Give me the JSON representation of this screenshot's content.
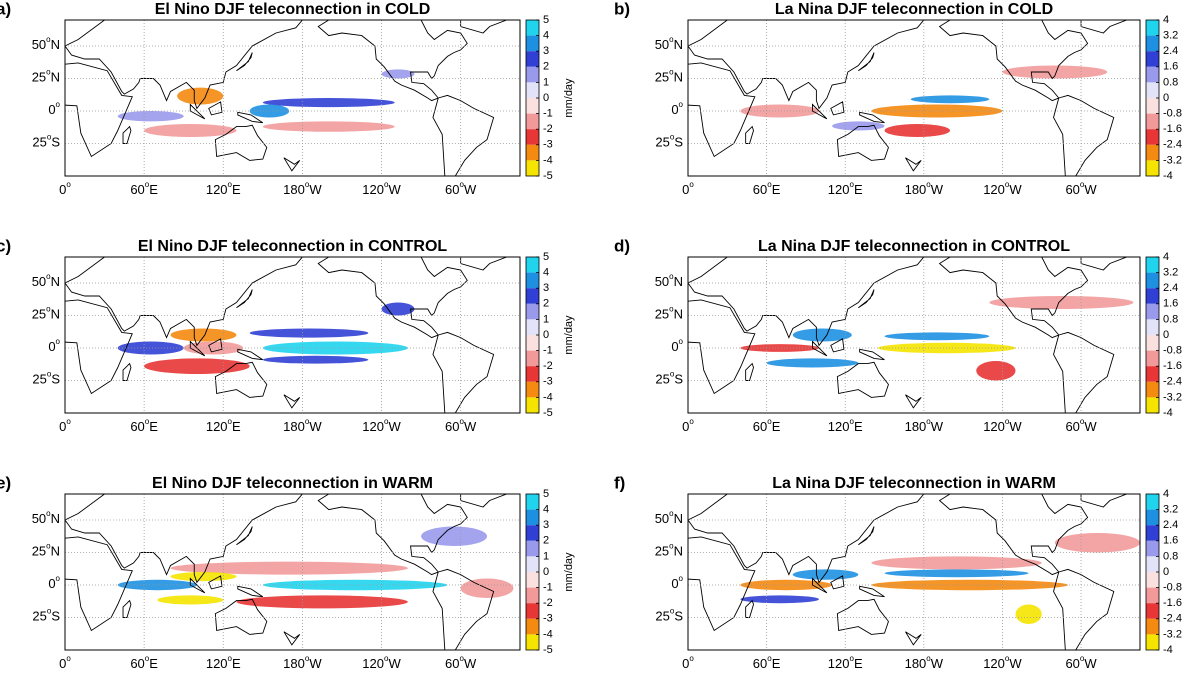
{
  "map": {
    "xlim": [
      0,
      345
    ],
    "ylim": [
      -50,
      70
    ],
    "xticks": [
      {
        "value": 0,
        "num": "0",
        "deg": "o"
      },
      {
        "value": 60,
        "num": "60",
        "deg": "o",
        "dir": "E"
      },
      {
        "value": 120,
        "num": "120",
        "deg": "o",
        "dir": "E"
      },
      {
        "value": 180,
        "num": "180",
        "deg": "o",
        "dir": "W"
      },
      {
        "value": 240,
        "num": "120",
        "deg": "o",
        "dir": "W"
      },
      {
        "value": 300,
        "num": "60",
        "deg": "o",
        "dir": "W"
      }
    ],
    "yticks": [
      {
        "value": 50,
        "num": "50",
        "deg": "o",
        "dir": "N"
      },
      {
        "value": 25,
        "num": "25",
        "deg": "o",
        "dir": "N"
      },
      {
        "value": 0,
        "num": "0",
        "deg": "o"
      },
      {
        "value": -25,
        "num": "25",
        "deg": "o",
        "dir": "S"
      }
    ],
    "grid": true,
    "colors": [
      "#f5e400",
      "#f48a10",
      "#e83535",
      "#f29a9a",
      "#fbe0e0",
      "#e2e2f8",
      "#9a9aec",
      "#3040d4",
      "#1e90e2",
      "#20d4ee"
    ]
  },
  "panels": [
    {
      "label": "a)",
      "title": "El Nino DJF teleconnection in COLD",
      "colorbar": {
        "lim": [
          -5,
          5
        ],
        "ticks": [
          5,
          4,
          3,
          2,
          1,
          0,
          -1,
          -2,
          -3,
          -4,
          -5
        ],
        "unit": "mm/day"
      },
      "anomalies": [
        {
          "lon": [
            60,
            130
          ],
          "lat": [
            -20,
            -10
          ],
          "value": -1.5
        },
        {
          "lon": [
            150,
            250
          ],
          "lat": [
            -16,
            -8
          ],
          "value": -1.5
        },
        {
          "lon": [
            40,
            90
          ],
          "lat": [
            -8,
            0
          ],
          "value": 1.5
        },
        {
          "lon": [
            150,
            250
          ],
          "lat": [
            3,
            10
          ],
          "value": 2.5
        },
        {
          "lon": [
            140,
            170
          ],
          "lat": [
            -5,
            5
          ],
          "value": 3.5
        },
        {
          "lon": [
            85,
            120
          ],
          "lat": [
            5,
            18
          ],
          "value": -3.5
        },
        {
          "lon": [
            240,
            265
          ],
          "lat": [
            25,
            32
          ],
          "value": 1.5
        }
      ]
    },
    {
      "label": "b)",
      "title": "La Nina DJF teleconnection in COLD",
      "colorbar": {
        "lim": [
          -4,
          4
        ],
        "ticks": [
          4,
          3.2,
          2.4,
          1.6,
          0.8,
          0,
          -0.8,
          -1.6,
          -2.4,
          -3.2,
          -4
        ]
      },
      "anomalies": [
        {
          "lon": [
            240,
            320
          ],
          "lat": [
            25,
            35
          ],
          "value": -1.2
        },
        {
          "lon": [
            40,
            100
          ],
          "lat": [
            -5,
            5
          ],
          "value": -1.2
        },
        {
          "lon": [
            150,
            200
          ],
          "lat": [
            -20,
            -10
          ],
          "value": -2
        },
        {
          "lon": [
            110,
            150
          ],
          "lat": [
            -15,
            -8
          ],
          "value": 1.2
        },
        {
          "lon": [
            140,
            240
          ],
          "lat": [
            -5,
            5
          ],
          "value": -2.8
        },
        {
          "lon": [
            170,
            230
          ],
          "lat": [
            6,
            12
          ],
          "value": 2.8
        }
      ]
    },
    {
      "label": "c)",
      "title": "El Nino DJF teleconnection in CONTROL",
      "colorbar": {
        "lim": [
          -5,
          5
        ],
        "ticks": [
          5,
          4,
          3,
          2,
          1,
          0,
          -1,
          -2,
          -3,
          -4,
          -5
        ],
        "unit": "mm/day"
      },
      "anomalies": [
        {
          "lon": [
            60,
            140
          ],
          "lat": [
            -20,
            -8
          ],
          "value": -2.5
        },
        {
          "lon": [
            140,
            230
          ],
          "lat": [
            8,
            15
          ],
          "value": 2.5
        },
        {
          "lon": [
            150,
            230
          ],
          "lat": [
            -12,
            -6
          ],
          "value": 2.5
        },
        {
          "lon": [
            40,
            90
          ],
          "lat": [
            -5,
            5
          ],
          "value": 2.5
        },
        {
          "lon": [
            90,
            135
          ],
          "lat": [
            -5,
            5
          ],
          "value": -1.5
        },
        {
          "lon": [
            150,
            260
          ],
          "lat": [
            -5,
            5
          ],
          "value": 4.5
        },
        {
          "lon": [
            80,
            130
          ],
          "lat": [
            5,
            15
          ],
          "value": -3.5
        },
        {
          "lon": [
            240,
            265
          ],
          "lat": [
            25,
            35
          ],
          "value": 2.5
        }
      ]
    },
    {
      "label": "d)",
      "title": "La Nina DJF teleconnection in CONTROL",
      "colorbar": {
        "lim": [
          -4,
          4
        ],
        "ticks": [
          4,
          3.2,
          2.4,
          1.6,
          0.8,
          0,
          -0.8,
          -1.6,
          -2.4,
          -3.2,
          -4
        ]
      },
      "anomalies": [
        {
          "lon": [
            230,
            340
          ],
          "lat": [
            30,
            40
          ],
          "value": -1.2
        },
        {
          "lon": [
            40,
            100
          ],
          "lat": [
            -3,
            3
          ],
          "value": -2
        },
        {
          "lon": [
            220,
            250
          ],
          "lat": [
            -25,
            -10
          ],
          "value": -2
        },
        {
          "lon": [
            60,
            130
          ],
          "lat": [
            -15,
            -8
          ],
          "value": 2.8
        },
        {
          "lon": [
            80,
            125
          ],
          "lat": [
            5,
            15
          ],
          "value": 2.8
        },
        {
          "lon": [
            150,
            230
          ],
          "lat": [
            6,
            12
          ],
          "value": 2.8
        },
        {
          "lon": [
            145,
            250
          ],
          "lat": [
            -4,
            4
          ],
          "value": -3.6
        }
      ]
    },
    {
      "label": "e)",
      "title": "El Nino DJF teleconnection in WARM",
      "colorbar": {
        "lim": [
          -5,
          5
        ],
        "ticks": [
          5,
          4,
          3,
          2,
          1,
          0,
          -1,
          -2,
          -3,
          -4,
          -5
        ],
        "unit": "mm/day"
      },
      "anomalies": [
        {
          "lon": [
            80,
            260
          ],
          "lat": [
            8,
            18
          ],
          "value": -1.5
        },
        {
          "lon": [
            130,
            260
          ],
          "lat": [
            -18,
            -8
          ],
          "value": -2.5
        },
        {
          "lon": [
            270,
            320
          ],
          "lat": [
            30,
            45
          ],
          "value": 1.5
        },
        {
          "lon": [
            300,
            340
          ],
          "lat": [
            -10,
            5
          ],
          "value": -1.5
        },
        {
          "lon": [
            40,
            100
          ],
          "lat": [
            -4,
            4
          ],
          "value": 3.5
        },
        {
          "lon": [
            150,
            290
          ],
          "lat": [
            -4,
            4
          ],
          "value": 4.5
        },
        {
          "lon": [
            80,
            130
          ],
          "lat": [
            3,
            10
          ],
          "value": -4.5
        },
        {
          "lon": [
            70,
            120
          ],
          "lat": [
            -15,
            -8
          ],
          "value": -4.5
        }
      ]
    },
    {
      "label": "f)",
      "title": "La Nina DJF teleconnection in WARM",
      "colorbar": {
        "lim": [
          -4,
          4
        ],
        "ticks": [
          4,
          3.2,
          2.4,
          1.6,
          0.8,
          0,
          -0.8,
          -1.6,
          -2.4,
          -3.2,
          -4
        ]
      },
      "anomalies": [
        {
          "lon": [
            140,
            270
          ],
          "lat": [
            12,
            22
          ],
          "value": -1.2
        },
        {
          "lon": [
            280,
            345
          ],
          "lat": [
            25,
            40
          ],
          "value": -1.2
        },
        {
          "lon": [
            40,
            100
          ],
          "lat": [
            -14,
            -8
          ],
          "value": 2
        },
        {
          "lon": [
            140,
            290
          ],
          "lat": [
            -4,
            4
          ],
          "value": -2.8
        },
        {
          "lon": [
            150,
            260
          ],
          "lat": [
            6,
            12
          ],
          "value": 2.8
        },
        {
          "lon": [
            40,
            110
          ],
          "lat": [
            -4,
            4
          ],
          "value": -2.8
        },
        {
          "lon": [
            80,
            130
          ],
          "lat": [
            4,
            12
          ],
          "value": 2.8
        },
        {
          "lon": [
            250,
            270
          ],
          "lat": [
            -30,
            -15
          ],
          "value": -3.6
        }
      ]
    }
  ]
}
